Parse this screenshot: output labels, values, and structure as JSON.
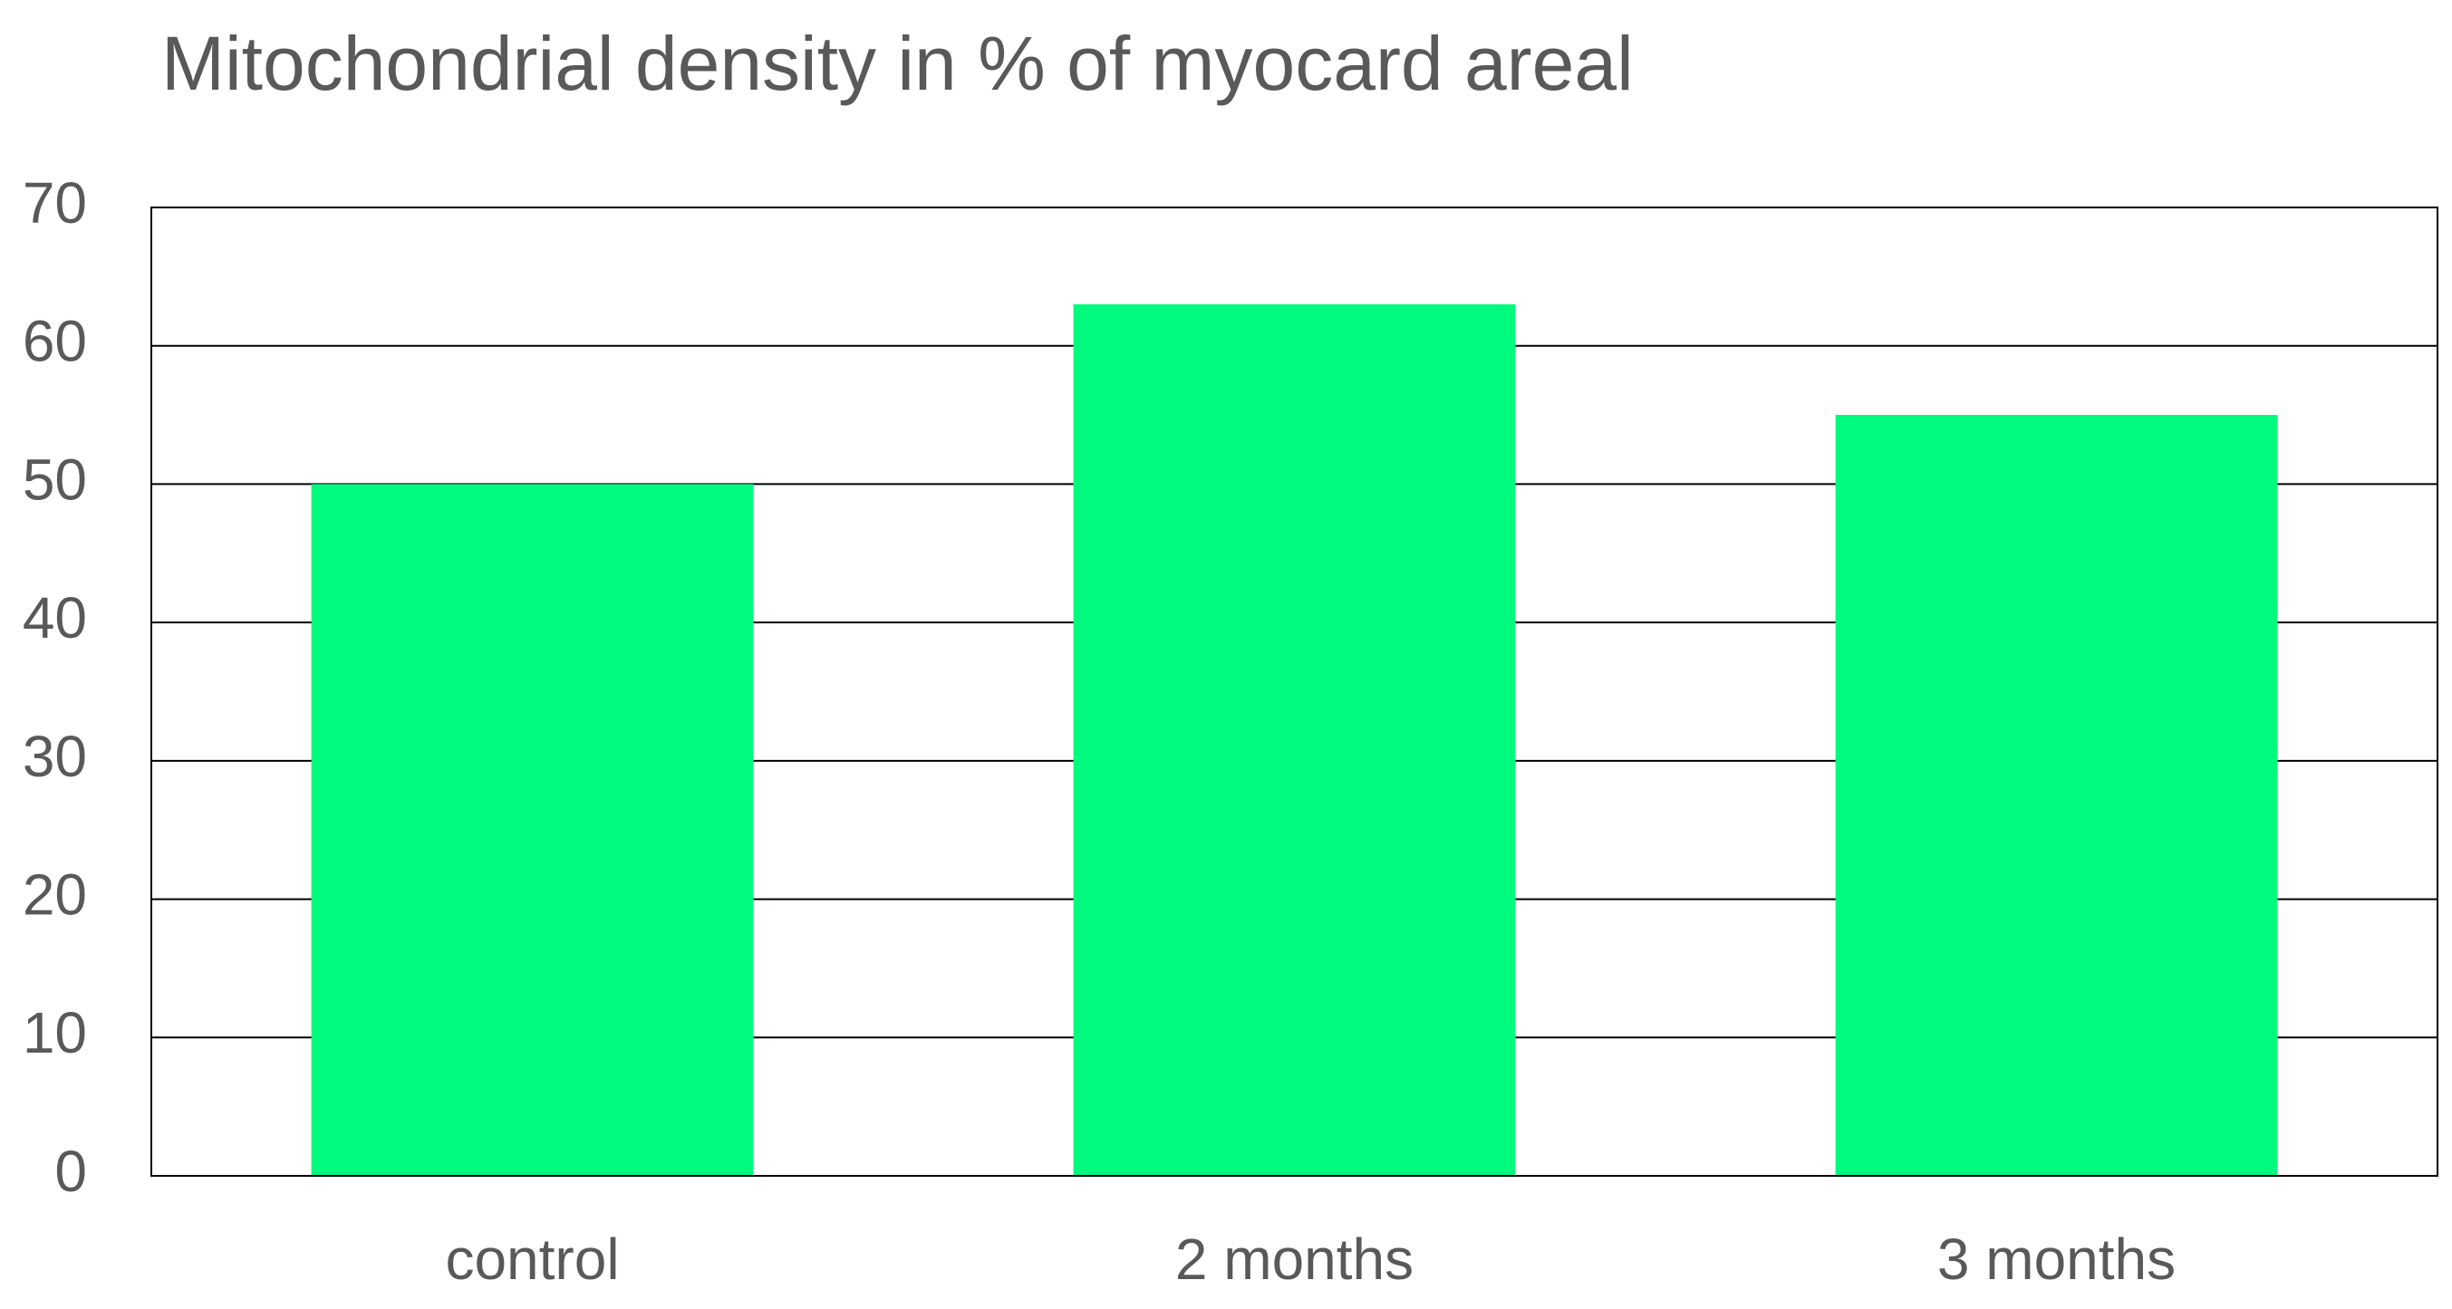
{
  "chart_data": {
    "type": "bar",
    "title": "Mitochondrial density in % of myocard areal",
    "xlabel": "",
    "ylabel": "",
    "categories": [
      "control",
      "2 months",
      "3 months"
    ],
    "values": [
      50,
      63,
      55
    ],
    "ylim": [
      0,
      70
    ],
    "yticks": [
      0,
      10,
      20,
      30,
      40,
      50,
      60,
      70
    ],
    "grid": true,
    "bar_color": "#00FA7D",
    "grid_color": "#000000",
    "text_color": "#595959"
  }
}
